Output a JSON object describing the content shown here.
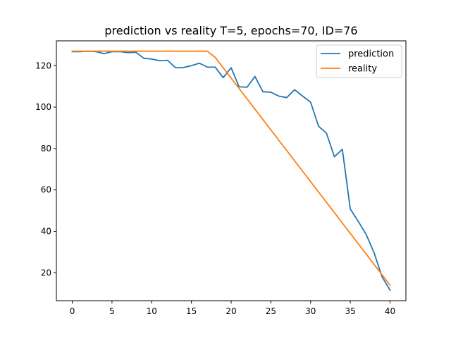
{
  "chart_data": {
    "type": "line",
    "title": "prediction vs reality T=5, epochs=70, ID=76",
    "xlabel": "",
    "ylabel": "",
    "xlim": [
      -2,
      42
    ],
    "ylim": [
      6.5,
      132
    ],
    "xticks": [
      0,
      5,
      10,
      15,
      20,
      25,
      30,
      35,
      40
    ],
    "yticks": [
      20,
      40,
      60,
      80,
      100,
      120
    ],
    "grid": false,
    "legend_position": "top-right",
    "x": [
      0,
      1,
      2,
      3,
      4,
      5,
      6,
      7,
      8,
      9,
      10,
      11,
      12,
      13,
      14,
      15,
      16,
      17,
      18,
      19,
      20,
      21,
      22,
      23,
      24,
      25,
      26,
      27,
      28,
      29,
      30,
      31,
      32,
      33,
      34,
      35,
      36,
      37,
      38,
      39,
      40
    ],
    "series": [
      {
        "name": "prediction",
        "color": "#1f77b4",
        "values": [
          126.8,
          126.8,
          127.0,
          126.8,
          125.8,
          126.8,
          126.8,
          126.3,
          126.5,
          123.6,
          123.2,
          122.4,
          122.6,
          119.0,
          119.1,
          120.0,
          121.2,
          119.3,
          119.3,
          114.2,
          119.0,
          109.8,
          109.6,
          114.8,
          107.4,
          107.2,
          105.3,
          104.6,
          108.4,
          105.3,
          102.4,
          90.8,
          87.4,
          76.0,
          79.6,
          50.8,
          44.8,
          38.5,
          29.6,
          18.0,
          11.6
        ]
      },
      {
        "name": "reality",
        "color": "#ff7f0e",
        "values": [
          127.0,
          127.0,
          127.0,
          127.0,
          127.0,
          127.0,
          127.0,
          127.0,
          127.0,
          127.0,
          127.0,
          127.0,
          127.0,
          127.0,
          127.0,
          127.0,
          127.0,
          127.0,
          124.0,
          119.0,
          114.0,
          109.0,
          104.0,
          99.0,
          94.0,
          89.0,
          84.0,
          79.0,
          74.0,
          69.0,
          64.0,
          59.0,
          54.0,
          49.0,
          44.0,
          39.0,
          34.0,
          29.0,
          24.0,
          19.0,
          14.0
        ]
      }
    ]
  }
}
